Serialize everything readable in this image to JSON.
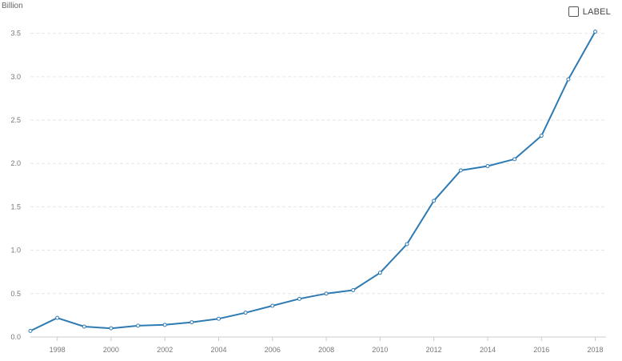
{
  "chart_data": {
    "type": "line",
    "title": "",
    "xlabel": "",
    "ylabel": "Billion",
    "x": [
      1997,
      1998,
      1999,
      2000,
      2001,
      2002,
      2003,
      2004,
      2005,
      2006,
      2007,
      2008,
      2009,
      2010,
      2011,
      2012,
      2013,
      2014,
      2015,
      2016,
      2017,
      2018
    ],
    "values": [
      0.07,
      0.22,
      0.12,
      0.1,
      0.13,
      0.14,
      0.17,
      0.21,
      0.28,
      0.36,
      0.44,
      0.5,
      0.54,
      0.74,
      1.07,
      1.57,
      1.92,
      1.97,
      2.05,
      2.32,
      2.97,
      3.52
    ],
    "xlim": [
      1997,
      2018.4
    ],
    "ylim": [
      0,
      3.7
    ],
    "x_ticks": [
      "1998",
      "2000",
      "2002",
      "2004",
      "2006",
      "2008",
      "2010",
      "2012",
      "2014",
      "2016",
      "2018"
    ],
    "y_ticks": [
      "0.0",
      "0.5",
      "1.0",
      "1.5",
      "2.0",
      "2.5",
      "3.0",
      "3.5"
    ],
    "grid": true,
    "line_color": "#2e7ab3",
    "grid_color": "#e6e6e6"
  },
  "controls": {
    "label_toggle": "LABEL",
    "label_checked": false
  }
}
